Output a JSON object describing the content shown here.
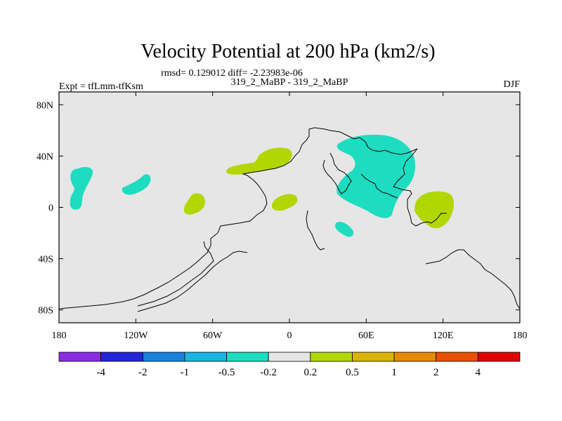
{
  "chart_data": {
    "type": "contour-map",
    "title": "Velocity Potential at 200 hPa (km2/s)",
    "stats_line": "rmsd= 0.129012 diff= -2.23983e-06",
    "subtitle_center": "319_2_MaBP - 319_2_MaBP",
    "subtitle_left": "Expt = tfLmm-tfKsm",
    "subtitle_right": "DJF",
    "x_ticks": [
      {
        "value": -180,
        "label": "180"
      },
      {
        "value": -120,
        "label": "120W"
      },
      {
        "value": -60,
        "label": "60W"
      },
      {
        "value": 0,
        "label": "0"
      },
      {
        "value": 60,
        "label": "60E"
      },
      {
        "value": 120,
        "label": "120E"
      },
      {
        "value": 180,
        "label": "180"
      }
    ],
    "y_ticks": [
      {
        "value": 80,
        "label": "80N"
      },
      {
        "value": 40,
        "label": "40N"
      },
      {
        "value": 0,
        "label": "0"
      },
      {
        "value": -40,
        "label": "40S"
      },
      {
        "value": -80,
        "label": "80S"
      }
    ],
    "xlim": [
      -180,
      180
    ],
    "ylim": [
      -90,
      90
    ],
    "background_color": "#e6e6e6",
    "colorbar": {
      "colors": [
        "#8a2be2",
        "#2424d8",
        "#1a80dc",
        "#19b4e0",
        "#1edcc0",
        "#e6e6e6",
        "#b2d600",
        "#dcb400",
        "#e68a00",
        "#e65000",
        "#e00000"
      ],
      "labels": [
        "-4",
        "-2",
        "-1",
        "-0.5",
        "-0.2",
        "0.2",
        "0.5",
        "1",
        "2",
        "4"
      ]
    },
    "anomalies": [
      {
        "category": "-0.5 to -0.2",
        "color": "#1edcc0",
        "region": "central Pacific",
        "center_lon": -164,
        "center_lat": 24
      },
      {
        "category": "-0.5 to -0.2",
        "color": "#1edcc0",
        "region": "tropical east Pacific",
        "center_lon": -138,
        "center_lat": 18
      },
      {
        "category": "-0.5 to -0.2",
        "color": "#1edcc0",
        "region": "Middle East / Asia",
        "center_lon": 55,
        "center_lat": 30
      },
      {
        "category": "-0.5 to -0.2",
        "color": "#1edcc0",
        "region": "Arabian Sea",
        "center_lon": 43,
        "center_lat": -18
      },
      {
        "category": "0.2 to 0.5",
        "color": "#b2d600",
        "region": "Gulf of Mexico",
        "center_lon": -38,
        "center_lat": 33
      },
      {
        "category": "0.2 to 0.5",
        "color": "#b2d600",
        "region": "east Pacific",
        "center_lon": -75,
        "center_lat": 3
      },
      {
        "category": "0.2 to 0.5",
        "color": "#b2d600",
        "region": "tropical Atlantic",
        "center_lon": -4,
        "center_lat": 4
      },
      {
        "category": "0.2 to 0.5",
        "color": "#b2d600",
        "region": "Maritime Continent",
        "center_lon": 113,
        "center_lat": 2
      }
    ]
  }
}
